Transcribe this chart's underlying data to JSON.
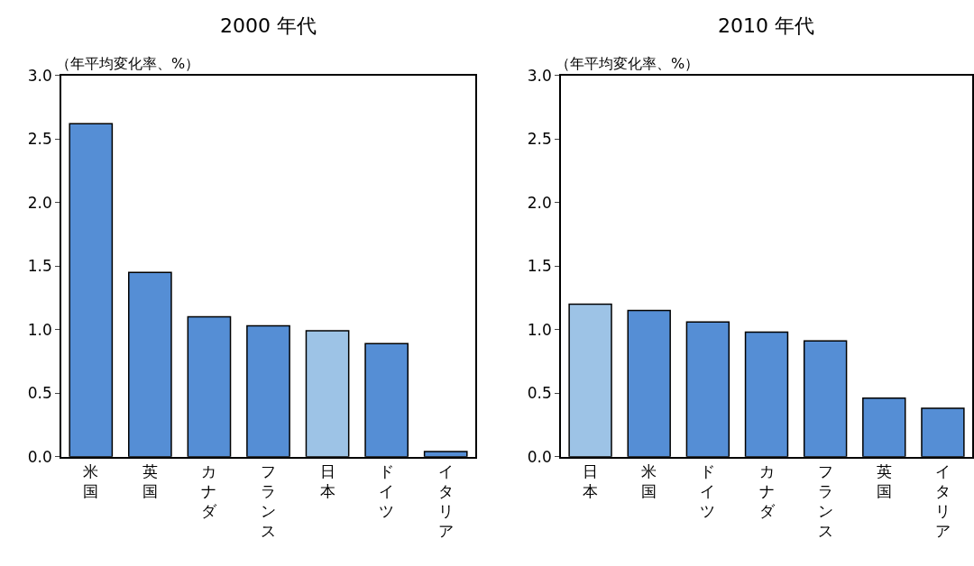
{
  "chart_data": [
    {
      "type": "bar",
      "title": "2000 年代",
      "ylabel": "（年平均変化率、%）",
      "categories": [
        "米国",
        "英国",
        "カナダ",
        "フランス",
        "日本",
        "ドイツ",
        "イタリア"
      ],
      "values": [
        2.62,
        1.45,
        1.1,
        1.03,
        0.99,
        0.89,
        0.04
      ],
      "colors": [
        "#558ed5",
        "#558ed5",
        "#558ed5",
        "#558ed5",
        "#9dc3e6",
        "#558ed5",
        "#558ed5"
      ],
      "ylim": [
        0,
        3
      ],
      "yticks": [
        {
          "value": 0,
          "label": "0.0"
        },
        0.5,
        {
          "value": 1,
          "label": "1.0"
        },
        1.5,
        {
          "value": 2,
          "label": "2.0"
        },
        2.5,
        {
          "value": 3,
          "label": "3.0"
        }
      ]
    },
    {
      "type": "bar",
      "title": "2010 年代",
      "ylabel": "（年平均変化率、%）",
      "categories": [
        "日本",
        "米国",
        "ドイツ",
        "カナダ",
        "フランス",
        "英国",
        "イタリア"
      ],
      "values": [
        1.2,
        1.15,
        1.06,
        0.98,
        0.91,
        0.46,
        0.38
      ],
      "colors": [
        "#9dc3e6",
        "#558ed5",
        "#558ed5",
        "#558ed5",
        "#558ed5",
        "#558ed5",
        "#558ed5"
      ],
      "ylim": [
        0,
        3
      ],
      "yticks": [
        {
          "value": 0,
          "label": "0.0"
        },
        0.5,
        {
          "value": 1,
          "label": "1.0"
        },
        1.5,
        {
          "value": 2,
          "label": "2.0"
        },
        2.5,
        {
          "value": 3,
          "label": "3.0"
        }
      ]
    }
  ]
}
